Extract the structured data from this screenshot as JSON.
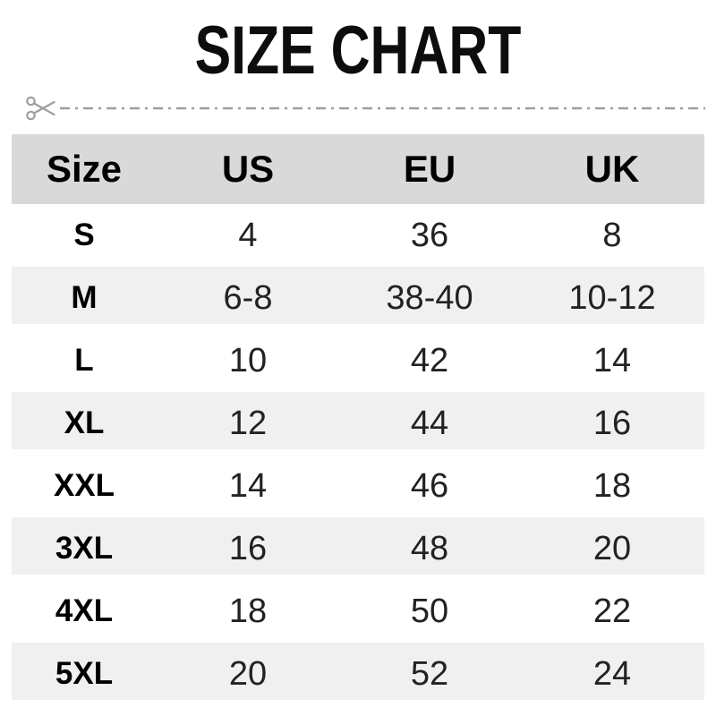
{
  "page": {
    "title": "SIZE CHART"
  },
  "cut_line": {
    "icon": "scissors",
    "pattern": "dash-dot"
  },
  "chart_data": {
    "type": "table",
    "title": "SIZE CHART",
    "columns": [
      "Size",
      "US",
      "EU",
      "UK"
    ],
    "rows": [
      [
        "S",
        "4",
        "36",
        "8"
      ],
      [
        "M",
        "6-8",
        "38-40",
        "10-12"
      ],
      [
        "L",
        "10",
        "42",
        "14"
      ],
      [
        "XL",
        "12",
        "44",
        "16"
      ],
      [
        "XXL",
        "14",
        "46",
        "18"
      ],
      [
        "3XL",
        "16",
        "48",
        "20"
      ],
      [
        "4XL",
        "18",
        "50",
        "22"
      ],
      [
        "5XL",
        "20",
        "52",
        "24"
      ]
    ],
    "layout": {
      "header_background": "#d9d9d9",
      "zebra_stripe_background": "#f0f0f0",
      "stripe_rows": [
        "M",
        "XL",
        "3XL",
        "5XL"
      ],
      "grid": false
    }
  },
  "colors": {
    "header_bg": "#d9d9d9",
    "stripe_bg": "#f0f0f0",
    "cut_line": "#9e9e9e",
    "text": "#222222",
    "page_bg": "#ffffff"
  }
}
